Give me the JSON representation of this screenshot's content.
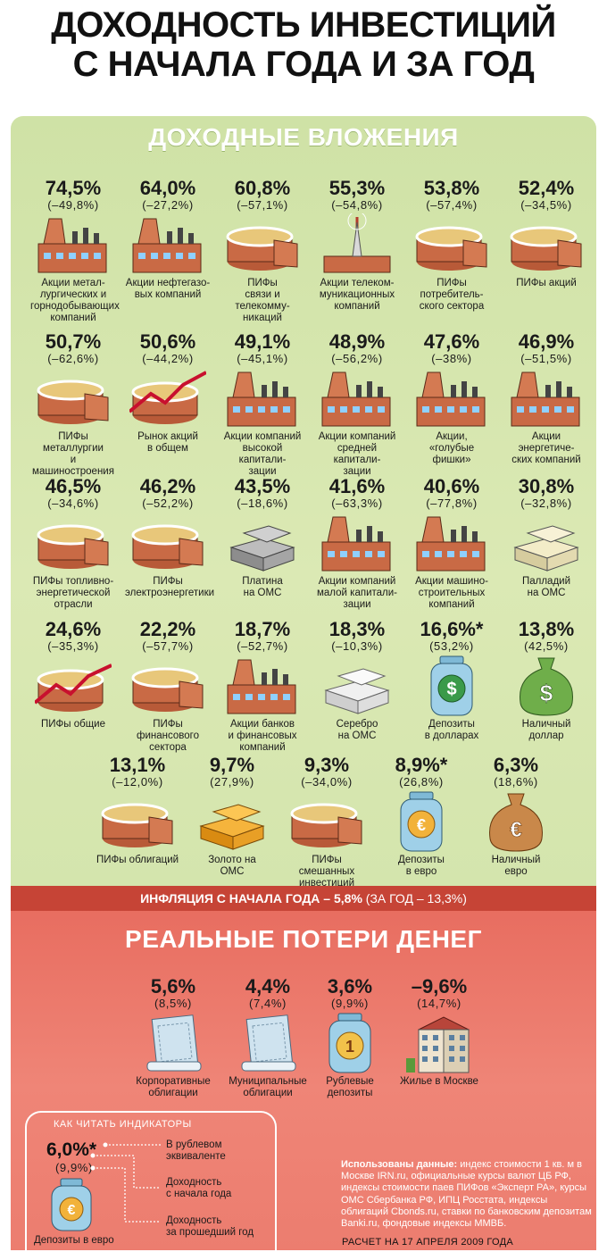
{
  "title_line1": "ДОХОДНОСТЬ ИНВЕСТИЦИЙ",
  "title_line2": "С НАЧАЛА ГОДА И ЗА ГОД",
  "section_income": "ДОХОДНЫЕ ВЛОЖЕНИЯ",
  "income_items": [
    {
      "pct": "74,5%",
      "sub": "(–49,8%)",
      "label": "Акции метал-\nлургических и\nгорнодобывающих\nкомпаний",
      "icon": "factory-icon"
    },
    {
      "pct": "64,0%",
      "sub": "(–27,2%)",
      "label": "Акции нефтегазо-\nвых компаний",
      "icon": "factory-icon"
    },
    {
      "pct": "60,8%",
      "sub": "(–57,1%)",
      "label": "ПИФы\nсвязи и телекомму-\nникаций",
      "icon": "pie-icon"
    },
    {
      "pct": "55,3%",
      "sub": "(–54,8%)",
      "label": "Акции телеком-\nмуникационных\nкомпаний",
      "icon": "tower-icon"
    },
    {
      "pct": "53,8%",
      "sub": "(–57,4%)",
      "label": "ПИФы потребитель-\nского сектора",
      "icon": "pie-icon"
    },
    {
      "pct": "52,4%",
      "sub": "(–34,5%)",
      "label": "ПИФы акций",
      "icon": "pie-icon"
    },
    {
      "pct": "50,7%",
      "sub": "(–62,6%)",
      "label": "ПИФы металлургии\nи машиностроения",
      "icon": "pie-icon"
    },
    {
      "pct": "50,6%",
      "sub": "(–44,2%)",
      "label": "Рынок акций\nв общем",
      "icon": "market-icon"
    },
    {
      "pct": "49,1%",
      "sub": "(–45,1%)",
      "label": "Акции компаний\nвысокой капитали-\nзации",
      "icon": "factory-icon"
    },
    {
      "pct": "48,9%",
      "sub": "(–56,2%)",
      "label": "Акции компаний\nсредней капитали-\nзации",
      "icon": "factory-icon"
    },
    {
      "pct": "47,6%",
      "sub": "(–38%)",
      "label": "Акции,\n«голубые фишки»",
      "icon": "factory-icon"
    },
    {
      "pct": "46,9%",
      "sub": "(–51,5%)",
      "label": "Акции энергетиче-\nских компаний",
      "icon": "factory-icon"
    },
    {
      "pct": "46,5%",
      "sub": "(–34,6%)",
      "label": "ПИФы топливно-\nэнергетической\nотрасли",
      "icon": "pie-icon"
    },
    {
      "pct": "46,2%",
      "sub": "(–52,2%)",
      "label": "ПИФы\nэлектроэнергетики",
      "icon": "pie-icon"
    },
    {
      "pct": "43,5%",
      "sub": "(–18,6%)",
      "label": "Платина\nна ОМС",
      "icon": "platinum-bars-icon"
    },
    {
      "pct": "41,6%",
      "sub": "(–63,3%)",
      "label": "Акции компаний\nмалой капитали-\nзации",
      "icon": "factory-icon"
    },
    {
      "pct": "40,6%",
      "sub": "(–77,8%)",
      "label": "Акции машино-\nстроительных\nкомпаний",
      "icon": "factory-icon"
    },
    {
      "pct": "30,8%",
      "sub": "(–32,8%)",
      "label": "Палладий\nна ОМС",
      "icon": "palladium-bars-icon"
    },
    {
      "pct": "24,6%",
      "sub": "(–35,3%)",
      "label": "ПИФы общие",
      "icon": "pie-market-icon"
    },
    {
      "pct": "22,2%",
      "sub": "(–57,7%)",
      "label": "ПИФы\nфинансового\nсектора",
      "icon": "pie-icon"
    },
    {
      "pct": "18,7%",
      "sub": "(–52,7%)",
      "label": "Акции банков\nи финансовых\nкомпаний",
      "icon": "factory-icon"
    },
    {
      "pct": "18,3%",
      "sub": "(–10,3%)",
      "label": "Серебро\nна ОМС",
      "icon": "silver-bars-icon"
    },
    {
      "pct": "16,6%*",
      "sub": "(53,2%)",
      "label": "Депозиты\nв долларах",
      "icon": "dollar-jar-icon"
    },
    {
      "pct": "13,8%",
      "sub": "(42,5%)",
      "label": "Наличный\nдоллар",
      "icon": "dollar-bag-icon"
    },
    {
      "pct": "13,1%",
      "sub": "(–12,0%)",
      "label": "ПИФы облигаций",
      "icon": "pie-icon"
    },
    {
      "pct": "9,7%",
      "sub": "(27,9%)",
      "label": "Золото на\nОМС",
      "icon": "gold-bars-icon"
    },
    {
      "pct": "9,3%",
      "sub": "(–34,0%)",
      "label": "ПИФы смешанных\nинвестиций",
      "icon": "pie-icon"
    },
    {
      "pct": "8,9%*",
      "sub": "(26,8%)",
      "label": "Депозиты\nв евро",
      "icon": "euro-jar-icon"
    },
    {
      "pct": "6,3%",
      "sub": "(18,6%)",
      "label": "Наличный\nевро",
      "icon": "euro-bag-icon"
    }
  ],
  "inflation_bold": "ИНФЛЯЦИЯ С НАЧАЛА ГОДА – 5,8%",
  "inflation_rest": " (ЗА ГОД – 13,3%)",
  "section_loss": "РЕАЛЬНЫЕ ПОТЕРИ ДЕНЕГ",
  "loss_items": [
    {
      "pct": "5,6%",
      "sub": "(8,5%)",
      "label": "Корпоративные\nоблигации",
      "icon": "bond-icon"
    },
    {
      "pct": "4,4%",
      "sub": "(7,4%)",
      "label": "Муниципальные\nоблигации",
      "icon": "bond-icon"
    },
    {
      "pct": "3,6%",
      "sub": "(9,9%)",
      "label": "Рублевые\nдепозиты",
      "icon": "ruble-jar-icon"
    },
    {
      "pct": "–9,6%",
      "sub": "(14,7%)",
      "label": "Жилье в Москве",
      "icon": "building-icon"
    }
  ],
  "howto": {
    "title": "КАК ЧИТАТЬ ИНДИКАТОРЫ",
    "pct": "6,0%*",
    "sub": "(9,9%)",
    "label1": "В рублевом\nэквиваленте",
    "label2": "Доходность\nс начала года",
    "label3": "Доходность\nза прошедший год",
    "deposit": "Депозиты в евро"
  },
  "sources_bold": "Использованы данные:",
  "sources_text": " индекс стоимости 1 кв. м в Москве IRN.ru, официальные курсы валют ЦБ РФ, индексы стоимости паев ПИФов «Эксперт РА», курсы ОМС Сбербанка РФ, ИПЦ Росстата, индексы облигаций Cbonds.ru, ставки по банковским депозитам Banki.ru, фондовые индексы ММВБ.",
  "calc_date": "РАСЧЕТ НА 17 АПРЕЛЯ 2009 ГОДА",
  "colors": {
    "green_panel": "#d4e5ad",
    "red_panel": "#ec7d6f",
    "inflation_bar": "#c64436",
    "brick": "#c96a45"
  }
}
